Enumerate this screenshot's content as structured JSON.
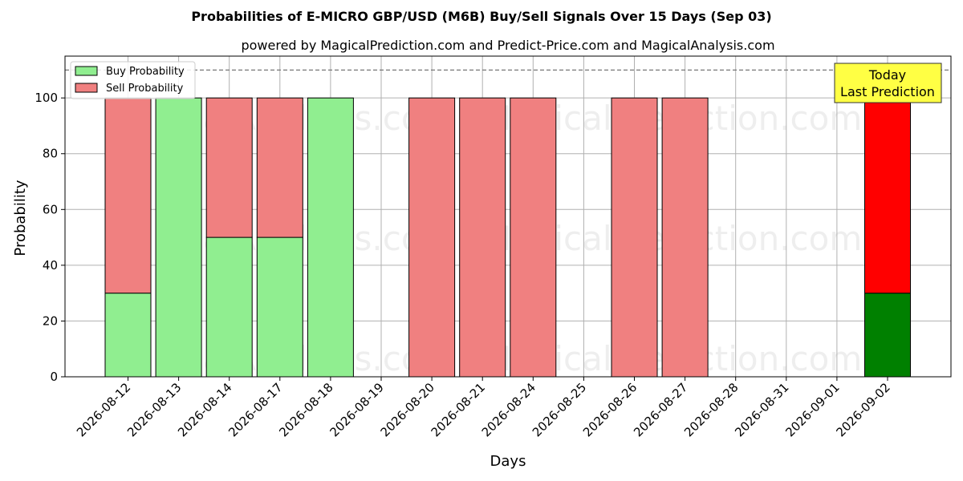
{
  "chart_data": {
    "type": "bar",
    "stacked": true,
    "title": "Probabilities of E-MICRO GBP/USD (M6B) Buy/Sell Signals Over 15 Days (Sep 03)",
    "subtitle": "powered by MagicalPrediction.com and Predict-Price.com and MagicalAnalysis.com",
    "xlabel": "Days",
    "ylabel": "Probability",
    "ylim": [
      0,
      115
    ],
    "yticks": [
      0,
      20,
      40,
      60,
      80,
      100
    ],
    "grid": true,
    "reference_line": 110,
    "legend_position": "top-left",
    "categories": [
      "2026-08-12",
      "2026-08-13",
      "2026-08-14",
      "2026-08-17",
      "2026-08-18",
      "2026-08-19",
      "2026-08-20",
      "2026-08-21",
      "2026-08-24",
      "2026-08-25",
      "2026-08-26",
      "2026-08-27",
      "2026-08-28",
      "2026-08-31",
      "2026-09-01",
      "2026-09-02"
    ],
    "series": [
      {
        "name": "Buy Probability",
        "color": "#90ee90",
        "values": [
          30,
          100,
          50,
          50,
          100,
          0,
          0,
          0,
          0,
          0,
          0,
          0,
          0,
          0,
          0,
          30
        ]
      },
      {
        "name": "Sell Probability",
        "color": "#f08080",
        "values": [
          70,
          0,
          50,
          50,
          0,
          0,
          100,
          100,
          100,
          0,
          100,
          100,
          0,
          0,
          0,
          70
        ]
      }
    ],
    "highlight": {
      "index": 15,
      "buy_color": "#008000",
      "sell_color": "#ff0000",
      "label_line1": "Today",
      "label_line2": "Last Prediction",
      "label_bg": "#ffff44"
    },
    "watermarks": [
      "MagicalAnalysis.com",
      "MagicalPrediction.com"
    ]
  }
}
